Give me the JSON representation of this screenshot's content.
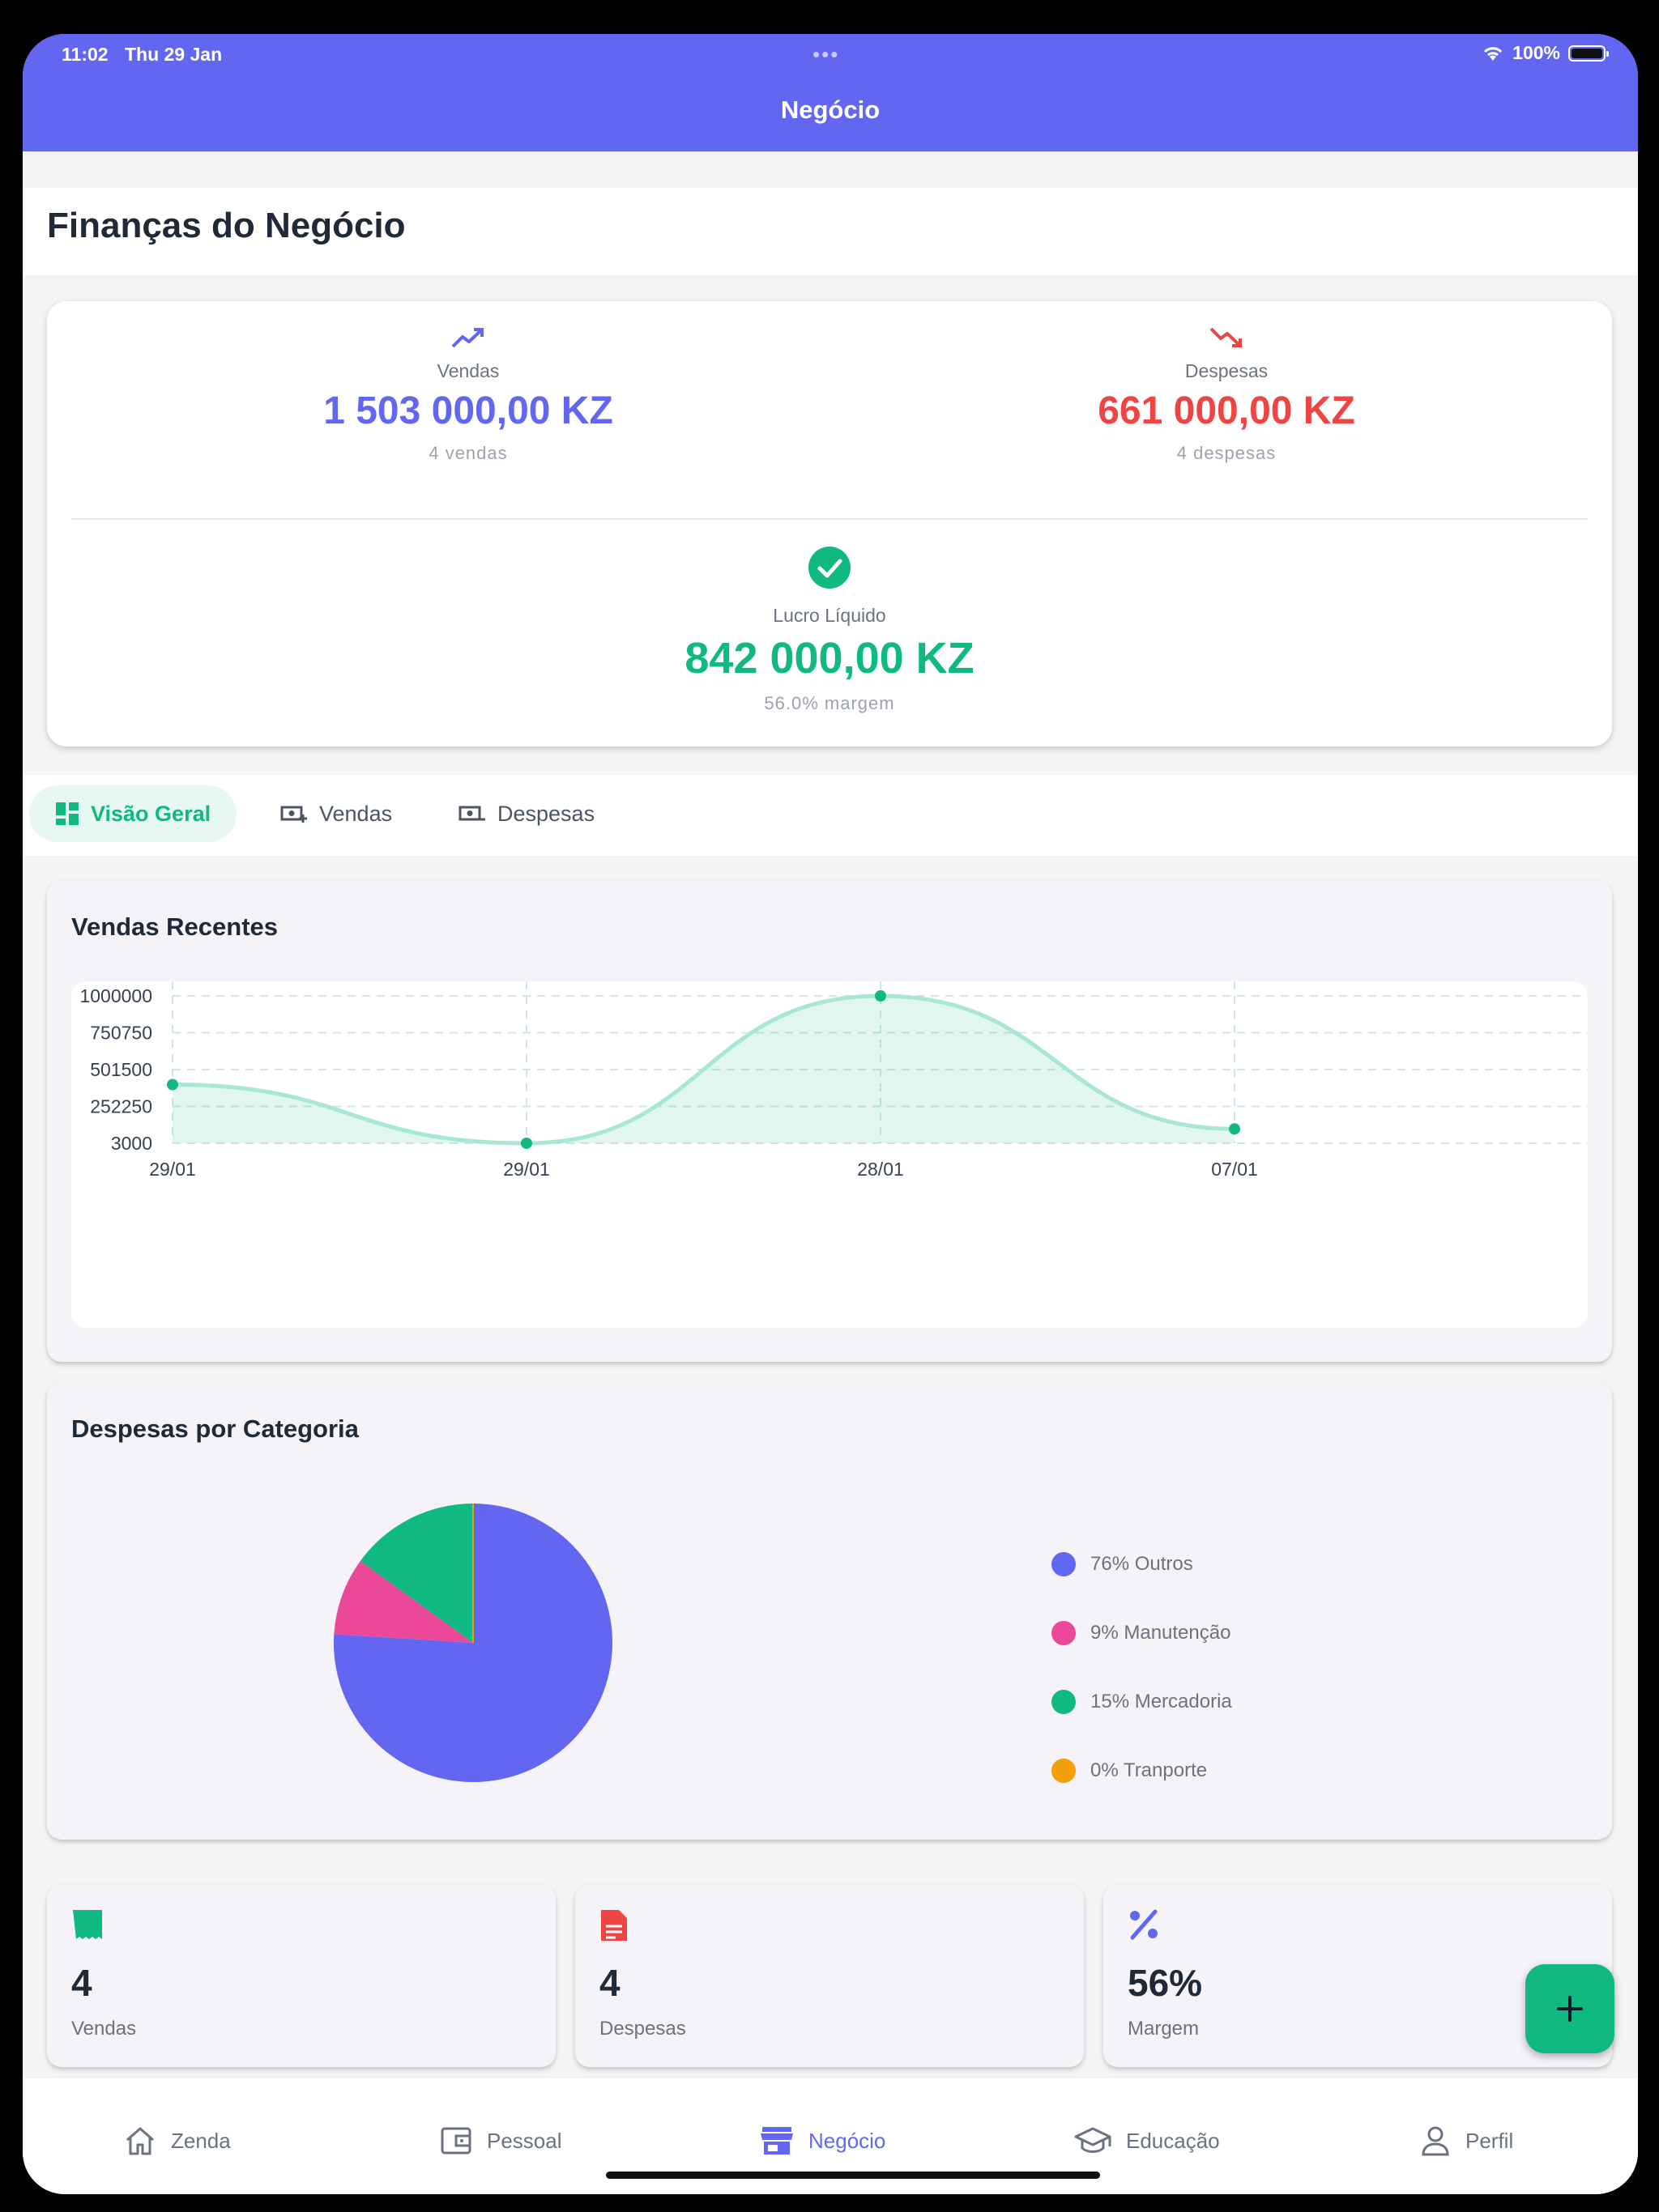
{
  "status": {
    "time": "11:02",
    "date": "Thu 29 Jan",
    "battery": "100%"
  },
  "header": {
    "title": "Negócio"
  },
  "page": {
    "title": "Finanças do Negócio"
  },
  "summary": {
    "sales": {
      "label": "Vendas",
      "value": "1 503 000,00 KZ",
      "sub": "4 vendas",
      "color": "#6366f1",
      "icon": "trending-up-icon"
    },
    "expenses": {
      "label": "Despesas",
      "value": "661 000,00 KZ",
      "sub": "4 despesas",
      "color": "#ef4444",
      "icon": "trending-down-icon"
    },
    "profit": {
      "label": "Lucro Líquido",
      "value": "842 000,00 KZ",
      "sub": "56.0% margem",
      "color": "#10b981",
      "icon": "check-circle-icon"
    }
  },
  "tabs": [
    {
      "label": "Visão Geral",
      "active": true,
      "icon": "dashboard-icon"
    },
    {
      "label": "Vendas",
      "active": false,
      "icon": "money-add-icon"
    },
    {
      "label": "Despesas",
      "active": false,
      "icon": "money-remove-icon"
    }
  ],
  "charts": {
    "sales_title": "Vendas Recentes",
    "expenses_title": "Despesas por Categoria"
  },
  "chart_data": [
    {
      "type": "area",
      "title": "Vendas Recentes",
      "categories": [
        "29/01",
        "29/01",
        "28/01",
        "07/01"
      ],
      "values": [
        400000,
        3000,
        1000000,
        100000
      ],
      "y_ticks": [
        "1000000",
        "750750",
        "501500",
        "252250",
        "3000"
      ],
      "ylim": [
        3000,
        1000000
      ],
      "grid": true,
      "color": "#10b981"
    },
    {
      "type": "pie",
      "title": "Despesas por Categoria",
      "slices": [
        {
          "label": "76% Outros",
          "value": 76,
          "color": "#6366f1"
        },
        {
          "label": "9% Manutenção",
          "value": 9,
          "color": "#ec4899"
        },
        {
          "label": "15% Mercadoria",
          "value": 15,
          "color": "#10b981"
        },
        {
          "label": "0% Tranporte",
          "value": 0,
          "color": "#f59e0b"
        }
      ],
      "legend_position": "right"
    }
  ],
  "mini_cards": [
    {
      "value": "4",
      "label": "Vendas",
      "icon": "receipt-icon",
      "color": "#10b981"
    },
    {
      "value": "4",
      "label": "Despesas",
      "icon": "document-icon",
      "color": "#ef4444"
    },
    {
      "value": "56%",
      "label": "Margem",
      "icon": "percent-icon",
      "color": "#6366f1"
    }
  ],
  "nav": [
    {
      "label": "Zenda",
      "icon": "home-icon",
      "active": false
    },
    {
      "label": "Pessoal",
      "icon": "wallet-icon",
      "active": false
    },
    {
      "label": "Negócio",
      "icon": "store-icon",
      "active": true
    },
    {
      "label": "Educação",
      "icon": "graduation-cap-icon",
      "active": false
    },
    {
      "label": "Perfil",
      "icon": "person-icon",
      "active": false
    }
  ]
}
